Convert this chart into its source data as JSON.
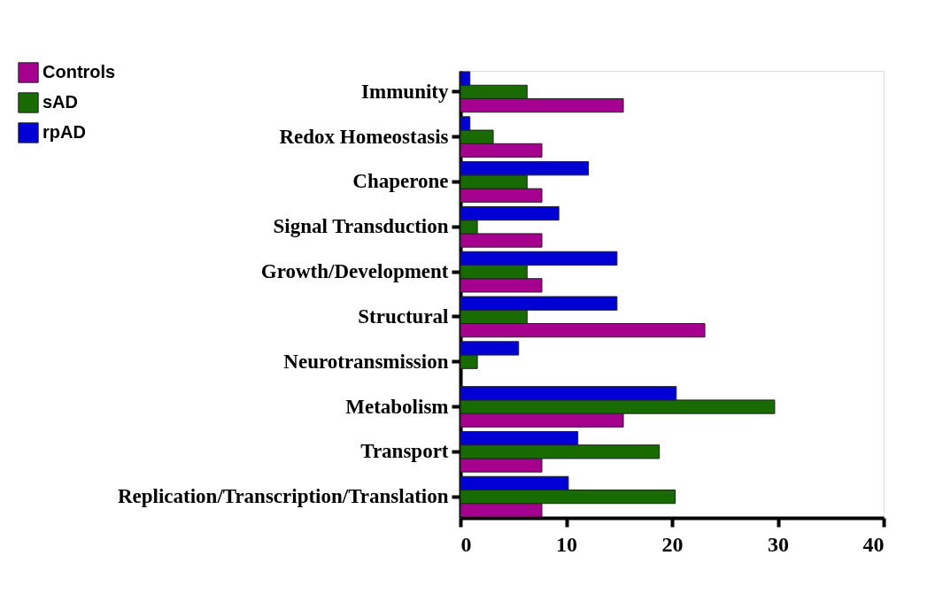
{
  "chart_data": {
    "type": "bar",
    "orientation": "horizontal",
    "categories": [
      "Immunity",
      "Redox Homeostasis",
      "Chaperone",
      "Signal Transduction",
      "Growth/Development",
      "Structural",
      "Neurotransmission",
      "Metabolism",
      "Transport",
      "Replication/Transcription/Translation"
    ],
    "series": [
      {
        "name": "Controls",
        "color": "#a6008f",
        "values": [
          15.4,
          7.7,
          7.7,
          7.7,
          7.7,
          23.1,
          null,
          15.4,
          7.7,
          7.7
        ]
      },
      {
        "name": "sAD",
        "color": "#176b00",
        "values": [
          6.3,
          3.1,
          6.3,
          1.6,
          6.3,
          6.3,
          1.6,
          29.7,
          18.8,
          20.3
        ]
      },
      {
        "name": "rpAD",
        "color": "#0000d4",
        "values": [
          0.9,
          0.9,
          12.1,
          9.3,
          14.8,
          14.8,
          5.5,
          20.4,
          11.1,
          10.2
        ]
      }
    ],
    "xlim": [
      0,
      40
    ],
    "xticks": [
      0,
      10,
      20,
      30,
      40
    ],
    "grid": false,
    "legend": "top left"
  }
}
